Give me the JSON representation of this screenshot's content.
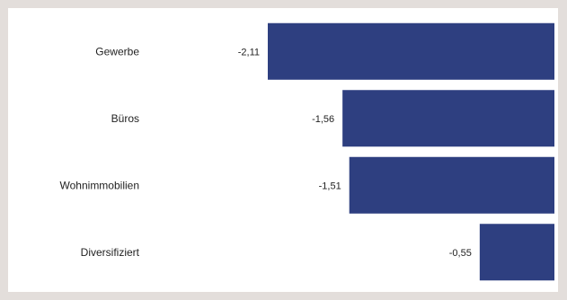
{
  "chart_data": {
    "type": "bar",
    "orientation": "horizontal",
    "categories": [
      "Gewerbe",
      "Büros",
      "Wohnimmobilien",
      "Diversifiziert"
    ],
    "values": [
      -2.11,
      -1.56,
      -1.51,
      -0.55
    ],
    "value_labels": [
      "-2,11",
      "-1,56",
      "-1,51",
      "-0,55"
    ],
    "xlim": [
      -2.11,
      0
    ],
    "bar_color": "#2e3f80",
    "grid": false,
    "legend": "none"
  }
}
